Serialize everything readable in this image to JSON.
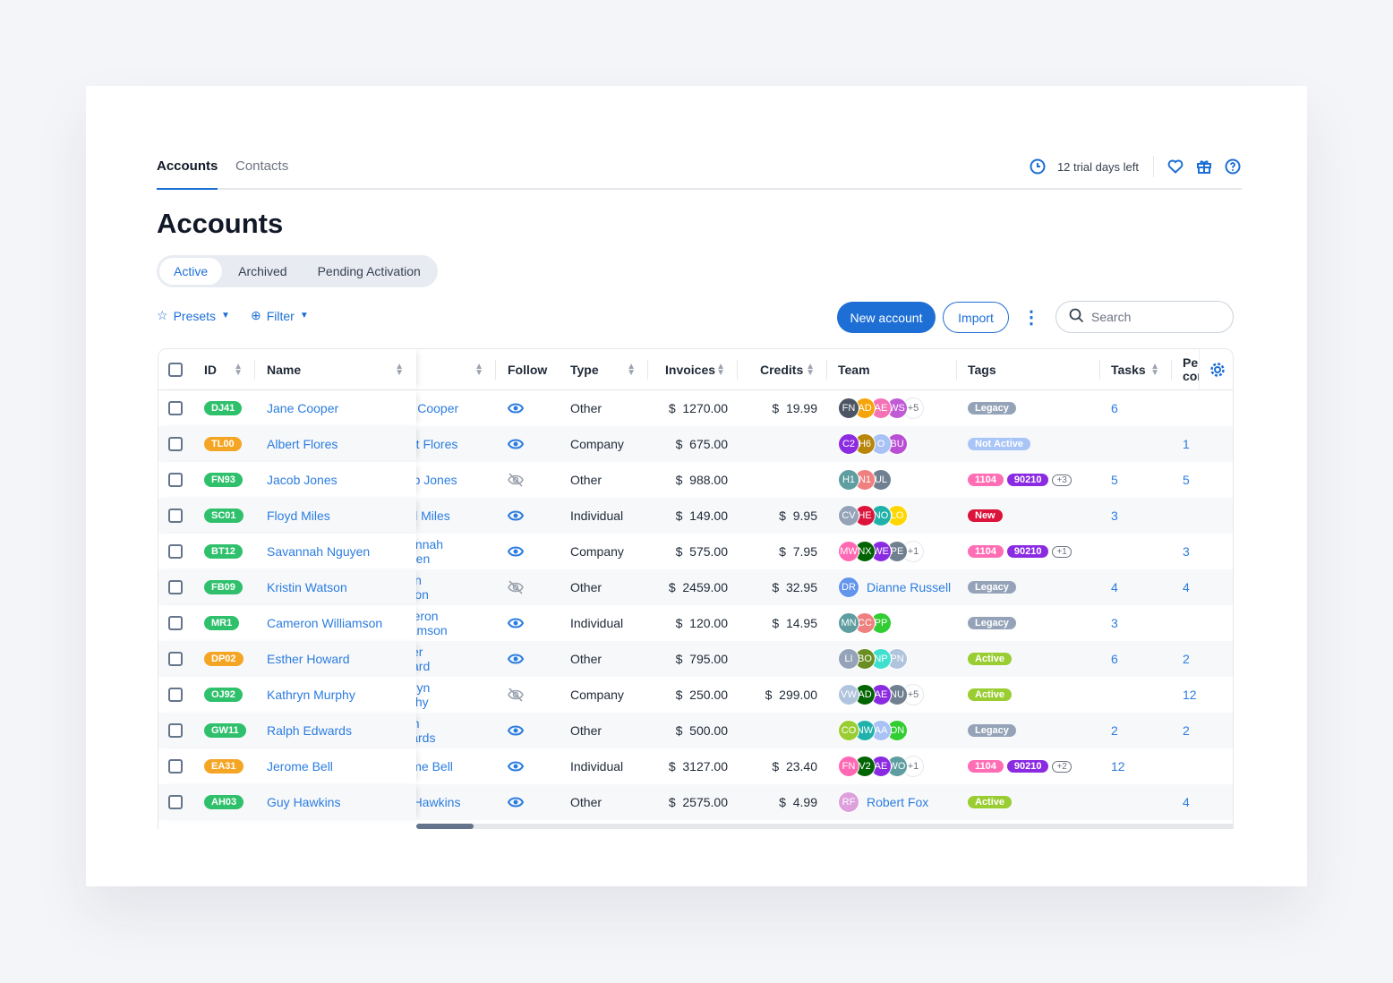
{
  "nav": {
    "tabs": [
      "Accounts",
      "Contacts"
    ],
    "trial": "12 trial days left"
  },
  "title": "Accounts",
  "segments": [
    "Active",
    "Archived",
    "Pending Activation"
  ],
  "toolbar": {
    "presets": "Presets",
    "filter": "Filter",
    "new_account": "New account",
    "import": "Import",
    "search_placeholder": "Search"
  },
  "columns": {
    "id": "ID",
    "name": "Name",
    "follow": "Follow",
    "type": "Type",
    "invoices": "Invoices",
    "credits": "Credits",
    "team": "Team",
    "tags": "Tags",
    "tasks": "Tasks",
    "per": "Per con"
  },
  "colors": {
    "green": "#2fc06c",
    "orange": "#f5a524",
    "accent": "#1d6fd6"
  },
  "rows": [
    {
      "id": "DJ41",
      "idc": "green",
      "name": "Jane Cooper",
      "follow": true,
      "type": "Other",
      "inv": "$  1270.00",
      "cred": "$  19.99",
      "team": [
        [
          "FN",
          "#4b5563"
        ],
        [
          "AD",
          "#f5a50b"
        ],
        [
          "AE",
          "#f472b6"
        ],
        [
          "WS",
          "#c05bd6"
        ]
      ],
      "more": "+5",
      "tags": [
        [
          "Legacy",
          "#94a3b8"
        ]
      ],
      "tmore": "",
      "tasks": "6",
      "per": ""
    },
    {
      "id": "TL00",
      "idc": "orange",
      "name": "Albert Flores",
      "follow": true,
      "type": "Company",
      "inv": "$  675.00",
      "cred": "",
      "team": [
        [
          "C2",
          "#8b2be2"
        ],
        [
          "H6",
          "#b8860b"
        ],
        [
          "O",
          "#a9c2f5"
        ],
        [
          "BU",
          "#b84fd4"
        ]
      ],
      "more": "",
      "tags": [
        [
          "Not Active",
          "#a9c5f7"
        ]
      ],
      "tmore": "",
      "tasks": "",
      "per": "1"
    },
    {
      "id": "FN93",
      "idc": "green",
      "name": "Jacob Jones",
      "follow": false,
      "type": "Other",
      "inv": "$  988.00",
      "cred": "",
      "team": [
        [
          "H1",
          "#5f9ea0"
        ],
        [
          "N1",
          "#f08080"
        ],
        [
          "UL",
          "#708090"
        ]
      ],
      "more": "",
      "tags": [
        [
          "1104",
          "#ff6eb4"
        ],
        [
          "90210",
          "#8a2be2"
        ]
      ],
      "tmore": "+3",
      "tasks": "5",
      "per": "5"
    },
    {
      "id": "SC01",
      "idc": "green",
      "name": "Floyd Miles",
      "follow": true,
      "type": "Individual",
      "inv": "$  149.00",
      "cred": "$  9.95",
      "team": [
        [
          "CV",
          "#94a3b8"
        ],
        [
          "HE",
          "#dc143c"
        ],
        [
          "NO",
          "#20b2aa"
        ],
        [
          "LO",
          "#ffd700"
        ]
      ],
      "more": "",
      "tags": [
        [
          "New",
          "#dc143c"
        ]
      ],
      "tmore": "",
      "tasks": "3",
      "per": ""
    },
    {
      "id": "BT12",
      "idc": "green",
      "name": "Savannah Nguyen",
      "follow": true,
      "type": "Company",
      "inv": "$  575.00",
      "cred": "$  7.95",
      "team": [
        [
          "MW",
          "#ff69b4"
        ],
        [
          "NX",
          "#006400"
        ],
        [
          "WE",
          "#8a2be2"
        ],
        [
          "PE",
          "#708090"
        ]
      ],
      "more": "+1",
      "tags": [
        [
          "1104",
          "#ff6eb4"
        ],
        [
          "90210",
          "#8a2be2"
        ]
      ],
      "tmore": "+1",
      "tasks": "",
      "per": "3"
    },
    {
      "id": "FB09",
      "idc": "green",
      "name": "Kristin Watson",
      "follow": false,
      "type": "Other",
      "inv": "$  2459.00",
      "cred": "$  32.95",
      "team": [
        [
          "DR",
          "#6495ed"
        ]
      ],
      "member": "Dianne Russell",
      "more": "",
      "tags": [
        [
          "Legacy",
          "#94a3b8"
        ]
      ],
      "tmore": "",
      "tasks": "4",
      "per": "4"
    },
    {
      "id": "MR1",
      "idc": "green",
      "name": "Cameron Williamson",
      "follow": true,
      "type": "Individual",
      "inv": "$  120.00",
      "cred": "$  14.95",
      "team": [
        [
          "MN",
          "#5f9ea0"
        ],
        [
          "CC",
          "#f08080"
        ],
        [
          "PP",
          "#32cd32"
        ]
      ],
      "more": "",
      "tags": [
        [
          "Legacy",
          "#94a3b8"
        ]
      ],
      "tmore": "",
      "tasks": "3",
      "per": ""
    },
    {
      "id": "DP02",
      "idc": "orange",
      "name": "Esther Howard",
      "follow": true,
      "type": "Other",
      "inv": "$  795.00",
      "cred": "",
      "team": [
        [
          "LI",
          "#94a3b8"
        ],
        [
          "BO",
          "#6b8e23"
        ],
        [
          "NP",
          "#40e0d0"
        ],
        [
          "PN",
          "#b0c4de"
        ]
      ],
      "more": "",
      "tags": [
        [
          "Active",
          "#9acd32"
        ]
      ],
      "tmore": "",
      "tasks": "6",
      "per": "2"
    },
    {
      "id": "OJ92",
      "idc": "green",
      "name": "Kathryn Murphy",
      "follow": false,
      "type": "Company",
      "inv": "$  250.00",
      "cred": "$  299.00",
      "team": [
        [
          "VW",
          "#b0c4de"
        ],
        [
          "AD",
          "#006400"
        ],
        [
          "AE",
          "#8a2be2"
        ],
        [
          "NU",
          "#708090"
        ]
      ],
      "more": "+5",
      "tags": [
        [
          "Active",
          "#9acd32"
        ]
      ],
      "tmore": "",
      "tasks": "",
      "per": "12"
    },
    {
      "id": "GW11",
      "idc": "green",
      "name": "Ralph Edwards",
      "follow": true,
      "type": "Other",
      "inv": "$  500.00",
      "cred": "",
      "team": [
        [
          "CO",
          "#9acd32"
        ],
        [
          "NW",
          "#20b2aa"
        ],
        [
          "AA",
          "#a9c2f5"
        ],
        [
          "ON",
          "#32cd32"
        ]
      ],
      "more": "",
      "tags": [
        [
          "Legacy",
          "#94a3b8"
        ]
      ],
      "tmore": "",
      "tasks": "2",
      "per": "2"
    },
    {
      "id": "EA31",
      "idc": "orange",
      "name": "Jerome Bell",
      "follow": true,
      "type": "Individual",
      "inv": "$  3127.00",
      "cred": "$  23.40",
      "team": [
        [
          "FN",
          "#ff69b4"
        ],
        [
          "V2",
          "#006400"
        ],
        [
          "AE",
          "#8a2be2"
        ],
        [
          "WO",
          "#5f9ea0"
        ]
      ],
      "more": "+1",
      "tags": [
        [
          "1104",
          "#ff6eb4"
        ],
        [
          "90210",
          "#8a2be2"
        ]
      ],
      "tmore": "+2",
      "tasks": "12",
      "per": ""
    },
    {
      "id": "AH03",
      "idc": "green",
      "name": "Guy Hawkins",
      "follow": true,
      "type": "Other",
      "inv": "$  2575.00",
      "cred": "$  4.99",
      "team": [
        [
          "RF",
          "#dda0dd"
        ]
      ],
      "member": "Robert Fox",
      "more": "",
      "tags": [
        [
          "Active",
          "#9acd32"
        ]
      ],
      "tmore": "",
      "tasks": "",
      "per": "4"
    }
  ]
}
